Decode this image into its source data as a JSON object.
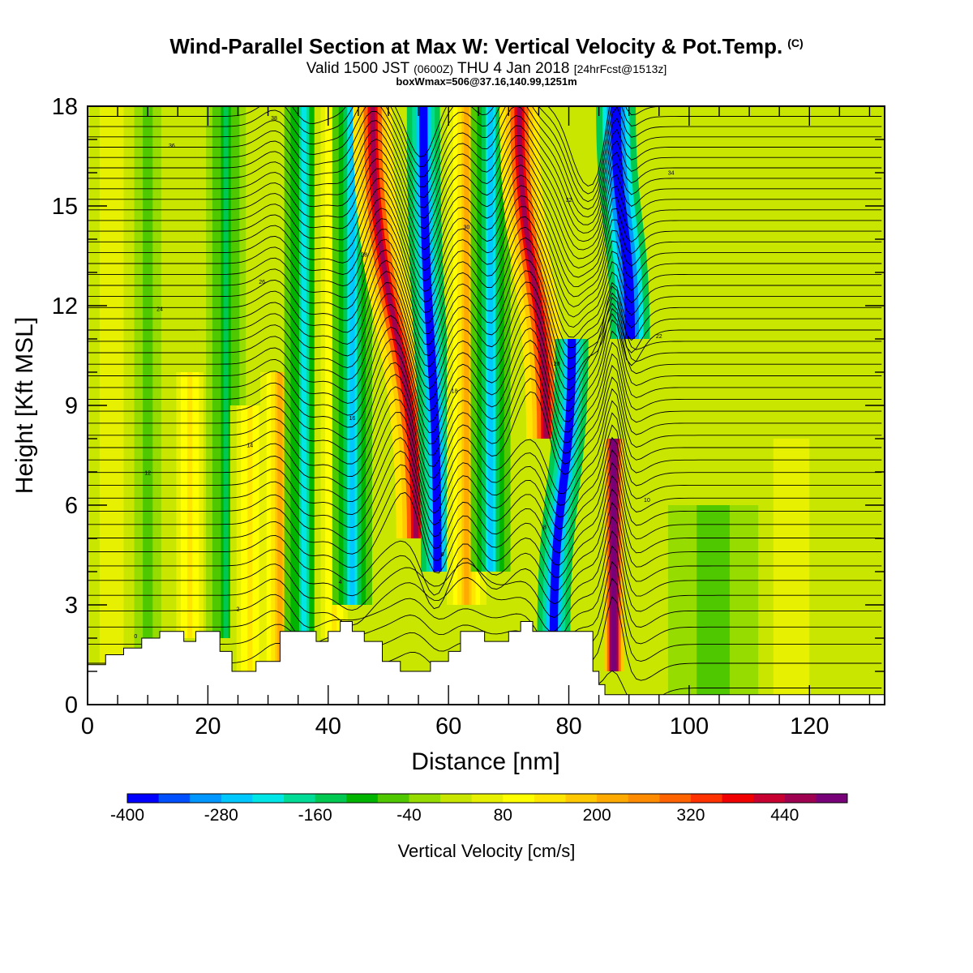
{
  "title": {
    "main": "Wind-Parallel Section at Max W: Vertical Velocity & Pot.Temp.",
    "copyright": "(C)",
    "valid_prefix": "Valid 1500 JST",
    "valid_utc": "(0600Z)",
    "valid_date": "THU 4 Jan 2018",
    "forecast": "[24hrFcst@1513z]",
    "boxinfo": "boxWmax=506@37.16,140.99,1251m"
  },
  "chart_data": {
    "type": "heatmap",
    "xlabel": "Distance [nm]",
    "ylabel": "Height [Kft MSL]",
    "xlim": [
      0,
      132.5
    ],
    "ylim": [
      0,
      18
    ],
    "xticks": [
      0,
      20,
      40,
      60,
      80,
      100,
      120
    ],
    "yticks": [
      0,
      3,
      6,
      9,
      12,
      15,
      18
    ],
    "colorbar": {
      "label": "Vertical Velocity [cm/s]",
      "min": -400,
      "max": 480,
      "step": 40,
      "tick_values": [
        -400,
        -280,
        -160,
        -40,
        80,
        200,
        320,
        440
      ],
      "tick_labels": [
        "-400",
        "-280",
        "-160",
        "-40",
        "80",
        "200",
        "320",
        "440"
      ],
      "colors": [
        "#0000ff",
        "#0050ff",
        "#0096ff",
        "#00c8ff",
        "#00e6e6",
        "#00dc96",
        "#00c850",
        "#00b400",
        "#50c800",
        "#96dc00",
        "#c8e600",
        "#e6f000",
        "#ffff00",
        "#ffe600",
        "#ffc800",
        "#ffaa00",
        "#ff8c00",
        "#ff6400",
        "#ff3200",
        "#f00000",
        "#c80032",
        "#a00050",
        "#780078"
      ]
    },
    "velocity_features": [
      {
        "x": 4,
        "w": 4,
        "v": 40,
        "top": 18,
        "bottom": 0
      },
      {
        "x": 10,
        "w": 3,
        "v": -40,
        "top": 18,
        "bottom": 0
      },
      {
        "x": 17,
        "w": 3,
        "v": 80,
        "top": 10,
        "bottom": 2
      },
      {
        "x": 23,
        "w": 3,
        "v": -80,
        "top": 18,
        "bottom": 2
      },
      {
        "x": 27,
        "w": 3,
        "v": 80,
        "top": 9,
        "bottom": 1
      },
      {
        "x": 32,
        "w": 3,
        "v": 120,
        "top": 10,
        "bottom": 1
      },
      {
        "x": 36,
        "w": 3,
        "v": -120,
        "top": 18,
        "bottom": 2
      },
      {
        "x": 41,
        "w": 3,
        "v": 80,
        "top": 18,
        "bottom": 2
      },
      {
        "x": 44,
        "w": 3,
        "v": -160,
        "top": 18,
        "bottom": 3
      },
      {
        "x": 51,
        "w": 3,
        "v": 280,
        "top": 18,
        "bottom": 5,
        "tilt": -10
      },
      {
        "x": 57,
        "w": 2.5,
        "v": -280,
        "top": 18,
        "bottom": 4,
        "tilt": -3
      },
      {
        "x": 63,
        "w": 3,
        "v": 120,
        "top": 18,
        "bottom": 3
      },
      {
        "x": 67,
        "w": 3,
        "v": -160,
        "top": 18,
        "bottom": 4
      },
      {
        "x": 74,
        "w": 3,
        "v": 280,
        "top": 18,
        "bottom": 8,
        "tilt": -8
      },
      {
        "x": 79,
        "w": 2.5,
        "v": -280,
        "top": 11,
        "bottom": 2,
        "tilt": 6
      },
      {
        "x": 87.5,
        "w": 1.5,
        "v": 440,
        "top": 8,
        "bottom": 1
      },
      {
        "x": 89,
        "w": 3,
        "v": -320,
        "top": 18,
        "bottom": 11,
        "tilt": -6
      },
      {
        "x": 104,
        "w": 10,
        "v": -40,
        "top": 6,
        "bottom": 0
      },
      {
        "x": 117,
        "w": 6,
        "v": 40,
        "top": 8,
        "bottom": 0
      }
    ],
    "potential_temperature_lines": {
      "count": 48,
      "base": [
        0.5,
        18
      ],
      "label_values": [
        "0",
        "2",
        "4",
        "6",
        "8",
        "10",
        "12",
        "14",
        "16",
        "18",
        "20",
        "22",
        "24",
        "26",
        "28",
        "30",
        "32",
        "34",
        "36",
        "38"
      ]
    },
    "terrain_profile": [
      [
        0,
        1.2
      ],
      [
        3,
        1.2
      ],
      [
        3,
        1.5
      ],
      [
        6,
        1.5
      ],
      [
        6,
        1.7
      ],
      [
        9,
        1.7
      ],
      [
        9,
        2.0
      ],
      [
        12,
        2.0
      ],
      [
        12,
        2.2
      ],
      [
        16,
        2.2
      ],
      [
        16,
        1.9
      ],
      [
        18,
        1.9
      ],
      [
        18,
        2.2
      ],
      [
        22,
        2.2
      ],
      [
        22,
        1.6
      ],
      [
        24,
        1.6
      ],
      [
        24,
        1.0
      ],
      [
        28,
        1.0
      ],
      [
        28,
        1.3
      ],
      [
        32,
        1.3
      ],
      [
        32,
        2.2
      ],
      [
        35,
        2.2
      ],
      [
        35,
        2.2
      ],
      [
        38,
        2.2
      ],
      [
        38,
        1.9
      ],
      [
        40,
        1.9
      ],
      [
        40,
        2.2
      ],
      [
        42,
        2.2
      ],
      [
        42,
        2.5
      ],
      [
        44,
        2.5
      ],
      [
        44,
        2.2
      ],
      [
        46,
        2.2
      ],
      [
        46,
        1.9
      ],
      [
        49,
        1.9
      ],
      [
        49,
        1.3
      ],
      [
        52,
        1.3
      ],
      [
        52,
        1.0
      ],
      [
        57,
        1.0
      ],
      [
        57,
        1.3
      ],
      [
        60,
        1.3
      ],
      [
        60,
        1.6
      ],
      [
        62,
        1.6
      ],
      [
        62,
        2.2
      ],
      [
        66,
        2.2
      ],
      [
        66,
        1.9
      ],
      [
        70,
        1.9
      ],
      [
        70,
        2.2
      ],
      [
        72,
        2.2
      ],
      [
        72,
        2.5
      ],
      [
        74,
        2.5
      ],
      [
        74,
        2.2
      ],
      [
        84,
        2.2
      ],
      [
        84,
        1.0
      ],
      [
        85,
        1.0
      ],
      [
        85,
        0.6
      ],
      [
        86,
        0.6
      ],
      [
        86,
        0.3
      ],
      [
        132.5,
        0.3
      ]
    ]
  }
}
